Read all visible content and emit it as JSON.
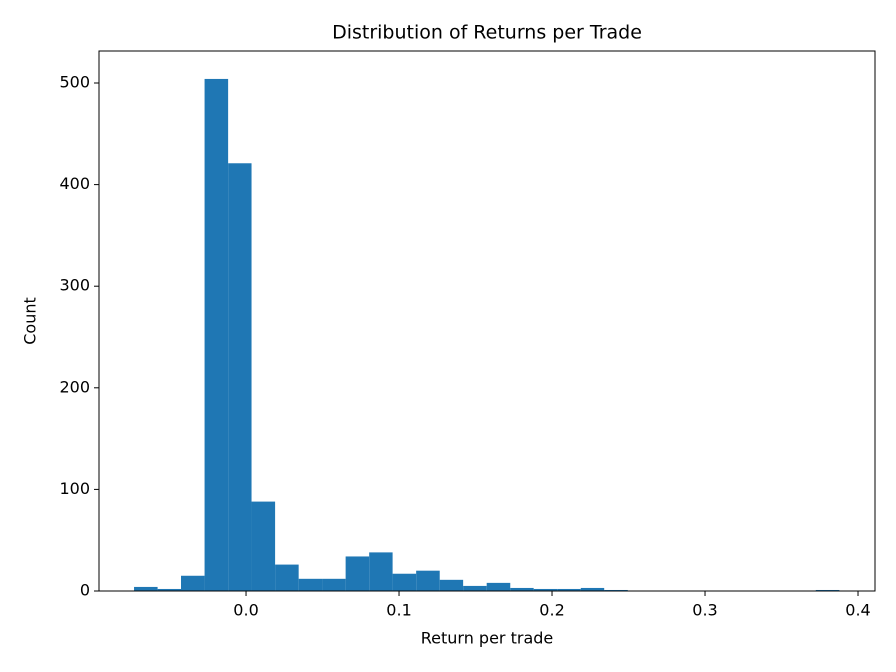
{
  "chart_data": {
    "type": "histogram",
    "title": "Distribution of Returns per Trade",
    "xlabel": "Return per trade",
    "ylabel": "Count",
    "bins": [
      -0.0732,
      -0.0578,
      -0.0425,
      -0.0271,
      -0.0117,
      0.0036,
      0.019,
      0.0344,
      0.0497,
      0.0651,
      0.0805,
      0.0958,
      0.1112,
      0.1266,
      0.1419,
      0.1573,
      0.1727,
      0.188,
      0.2034,
      0.2188,
      0.2341,
      0.2495,
      0.2649,
      0.2802,
      0.2956,
      0.311,
      0.3263,
      0.3417,
      0.3571,
      0.3724,
      0.3878
    ],
    "counts": [
      4,
      2,
      15,
      504,
      421,
      88,
      26,
      12,
      12,
      34,
      38,
      17,
      20,
      11,
      5,
      8,
      3,
      2,
      2,
      3,
      1,
      0,
      0,
      0,
      0,
      0,
      0,
      0,
      0,
      1
    ],
    "color": "#1f77b4",
    "xlim": [
      -0.0961,
      0.4111
    ],
    "ylim": [
      0,
      531.5
    ],
    "xticks": [
      {
        "value": 0,
        "label": "0.0"
      },
      0.1,
      0.2,
      0.3,
      0.4
    ],
    "yticks": [
      0,
      100,
      200,
      300,
      400,
      500
    ]
  }
}
